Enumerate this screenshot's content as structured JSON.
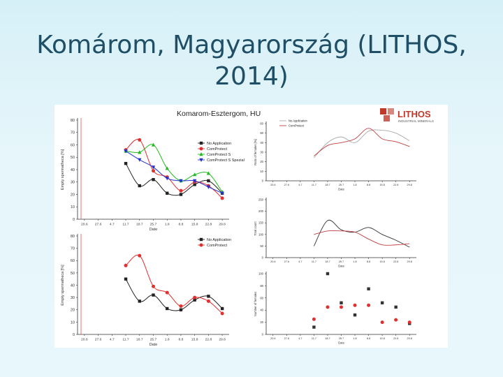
{
  "slide": {
    "title_line1": "Komárom, Magyarország (LITHOS,",
    "title_line2": "2014)",
    "colors": {
      "title": "#1f4f66",
      "background": "#e6f6fa"
    }
  },
  "figure": {
    "heading": "Komarom-Esztergom, HU",
    "logo_text": "LITHOS",
    "logo_sub": "INDUSTRIAL MINERALS",
    "logo_color": "#c0392b"
  },
  "chart_data": [
    {
      "id": "c1",
      "type": "line",
      "ylabel": "Empty spermatheca [%]",
      "xlabel": "Date",
      "ylim": [
        0,
        80
      ],
      "yticks": [
        0,
        10,
        20,
        30,
        40,
        50,
        60,
        70,
        80
      ],
      "dates": [
        "20.6",
        "27.6",
        "4.7",
        "11.7",
        "18.7",
        "25.7",
        "1.8",
        "8.8",
        "15.8",
        "22.8",
        "29.8"
      ],
      "legend": [
        "No Application",
        "ComProtect",
        "ComProtect S",
        "ComProtect S Spezial"
      ],
      "series": [
        {
          "name": "No Application",
          "color": "#222222",
          "marker": "square",
          "x": [
            3,
            4,
            5,
            6,
            7,
            8,
            9,
            10
          ],
          "y": [
            45,
            27,
            32,
            21,
            20,
            28,
            31,
            21
          ]
        },
        {
          "name": "ComProtect",
          "color": "#e03030",
          "marker": "circle",
          "x": [
            3,
            4,
            5,
            6,
            7,
            8,
            9,
            10
          ],
          "y": [
            56,
            64,
            39,
            34,
            23,
            30,
            27,
            17
          ]
        },
        {
          "name": "ComProtect S",
          "color": "#22bb22",
          "marker": "triangle",
          "x": [
            3,
            4,
            5,
            6,
            7,
            8,
            9,
            10
          ],
          "y": [
            55,
            54,
            60,
            41,
            31,
            36,
            37,
            22
          ]
        },
        {
          "name": "ComProtect S Spezial",
          "color": "#2233cc",
          "marker": "tridown",
          "x": [
            3,
            4,
            5,
            6,
            7,
            8,
            9,
            10
          ],
          "y": [
            55,
            48,
            42,
            33,
            31,
            31,
            26,
            21
          ]
        }
      ]
    },
    {
      "id": "c2",
      "type": "line",
      "ylabel": "Empty spermatheca [%]",
      "xlabel": "Date",
      "ylim": [
        0,
        80
      ],
      "yticks": [
        0,
        10,
        20,
        30,
        40,
        50,
        60,
        70,
        80
      ],
      "dates": [
        "20.6",
        "27.6",
        "4.7",
        "11.7",
        "18.7",
        "25.7",
        "1.8",
        "8.8",
        "15.8",
        "22.8",
        "29.8"
      ],
      "legend": [
        "No Application",
        "ComProtect"
      ],
      "series": [
        {
          "name": "No Application",
          "color": "#222222",
          "marker": "square",
          "x": [
            3,
            4,
            5,
            6,
            7,
            8,
            9,
            10
          ],
          "y": [
            45,
            27,
            32,
            21,
            20,
            28,
            31,
            21
          ]
        },
        {
          "name": "ComProtect",
          "color": "#e03030",
          "marker": "circle",
          "x": [
            3,
            4,
            5,
            6,
            7,
            8,
            9,
            10
          ],
          "y": [
            56,
            64,
            39,
            34,
            23,
            30,
            27,
            17
          ]
        }
      ]
    },
    {
      "id": "c3",
      "type": "line",
      "ylabel": "Ratio of females [%]",
      "xlabel": "Date",
      "ylim": [
        0,
        60
      ],
      "yticks": [
        0,
        10,
        20,
        30,
        40,
        50,
        60
      ],
      "dates": [
        "20.6",
        "27.6",
        "4.7",
        "11.7",
        "18.7",
        "25.7",
        "1.8",
        "8.8",
        "15.8",
        "22.8",
        "29.8"
      ],
      "legend": [
        "No Application",
        "ComProtect"
      ],
      "series": [
        {
          "name": "No Application",
          "color": "#aaaaaa",
          "marker": "none",
          "x": [
            3,
            4,
            5,
            6,
            7,
            8,
            9,
            10
          ],
          "y": [
            24,
            40,
            46,
            40,
            52,
            53,
            50,
            42
          ]
        },
        {
          "name": "ComProtect",
          "color": "#c04040",
          "marker": "none",
          "x": [
            3,
            4,
            5,
            6,
            7,
            8,
            9,
            10
          ],
          "y": [
            26,
            37,
            40,
            44,
            55,
            44,
            41,
            36
          ]
        }
      ]
    },
    {
      "id": "c4",
      "type": "line",
      "ylabel": "Total count",
      "xlabel": "Date",
      "ylim": [
        0,
        250
      ],
      "yticks": [
        0,
        50,
        100,
        150,
        200,
        250
      ],
      "dates": [
        "20.6",
        "27.6",
        "4.7",
        "11.7",
        "18.7",
        "25.7",
        "1.8",
        "8.8",
        "15.8",
        "22.8",
        "29.8"
      ],
      "legend": [],
      "series": [
        {
          "name": "No Application",
          "color": "#333333",
          "marker": "none",
          "x": [
            3,
            4,
            5,
            6,
            7,
            8,
            9,
            10
          ],
          "y": [
            50,
            160,
            120,
            110,
            130,
            100,
            75,
            45
          ]
        },
        {
          "name": "ComProtect",
          "color": "#c04040",
          "marker": "none",
          "x": [
            3,
            4,
            5,
            6,
            7,
            8,
            9,
            10
          ],
          "y": [
            100,
            115,
            115,
            110,
            80,
            55,
            55,
            60
          ]
        }
      ]
    },
    {
      "id": "c5",
      "type": "scatter",
      "ylabel": "Number of females",
      "xlabel": "Date",
      "ylim": [
        0,
        100
      ],
      "yticks": [
        0,
        20,
        40,
        60,
        80,
        100
      ],
      "dates": [
        "20.6",
        "27.6",
        "4.7",
        "11.7",
        "18.7",
        "25.7",
        "1.8",
        "8.8",
        "15.8",
        "22.8",
        "29.8"
      ],
      "legend": [],
      "series": [
        {
          "name": "No Application",
          "color": "#333333",
          "marker": "square",
          "x": [
            3,
            4,
            5,
            6,
            7,
            8,
            9,
            10
          ],
          "y": [
            12,
            100,
            52,
            32,
            75,
            52,
            45,
            18
          ]
        },
        {
          "name": "ComProtect",
          "color": "#e03030",
          "marker": "circle",
          "x": [
            3,
            4,
            5,
            6,
            7,
            8,
            9,
            10
          ],
          "y": [
            25,
            45,
            45,
            48,
            48,
            20,
            24,
            20
          ]
        }
      ]
    }
  ]
}
